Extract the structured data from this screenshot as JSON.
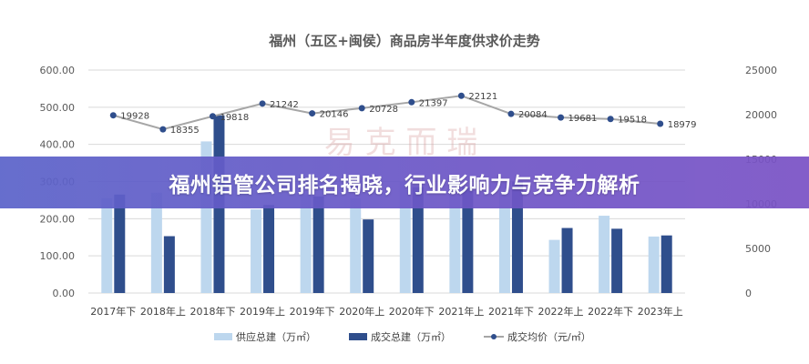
{
  "banner": {
    "headline": "福州铝管公司排名揭晓，行业影响力与竞争力解析"
  },
  "watermark": {
    "text": "易 克 而 瑞"
  },
  "colors": {
    "supply": "#bdd7ee",
    "deal": "#2f4e8c",
    "price_line": "#a6a6a6",
    "price_marker": "#2f4e8c",
    "grid": "#d9d9d9",
    "banner_start": "#5b63c9",
    "banner_end": "#7a52c5"
  },
  "chart_data": {
    "type": "bar",
    "title": "福州（五区+闽侯）商品房半年度供求价走势",
    "categories": [
      "2017年下",
      "2018年上",
      "2018年下",
      "2019年上",
      "2019年下",
      "2020年上",
      "2020年下",
      "2021年上",
      "2021年下",
      "2022年上",
      "2022年下",
      "2023年上"
    ],
    "y_left": {
      "ylim": [
        0,
        600
      ],
      "ticks": [
        "0.00",
        "100.00",
        "200.00",
        "300.00",
        "400.00",
        "500.00",
        "600.00"
      ]
    },
    "y_right": {
      "ylim": [
        0,
        25000
      ],
      "ticks": [
        "0",
        "5000",
        "10000",
        "15000",
        "20000",
        "25000"
      ]
    },
    "series": [
      {
        "name": "供应总建（万㎡）",
        "type": "bar",
        "axis": "left",
        "values": [
          255,
          270,
          408,
          225,
          265,
          255,
          300,
          305,
          300,
          143,
          208,
          152
        ]
      },
      {
        "name": "成交总建（万㎡）",
        "type": "bar",
        "axis": "left",
        "values": [
          265,
          153,
          478,
          237,
          260,
          198,
          285,
          285,
          300,
          175,
          173,
          155
        ]
      },
      {
        "name": "成交均价（元/㎡）",
        "type": "line",
        "axis": "right",
        "values": [
          19928,
          18355,
          19818,
          21242,
          20146,
          20728,
          21397,
          22121,
          20084,
          19681,
          19518,
          18979
        ],
        "labels": [
          "19928",
          "18355",
          "19818",
          "21242",
          "20146",
          "20728",
          "21397",
          "22121",
          "20084",
          "19681",
          "19518",
          "18979"
        ]
      }
    ],
    "grid": true,
    "legend": "bottom"
  }
}
